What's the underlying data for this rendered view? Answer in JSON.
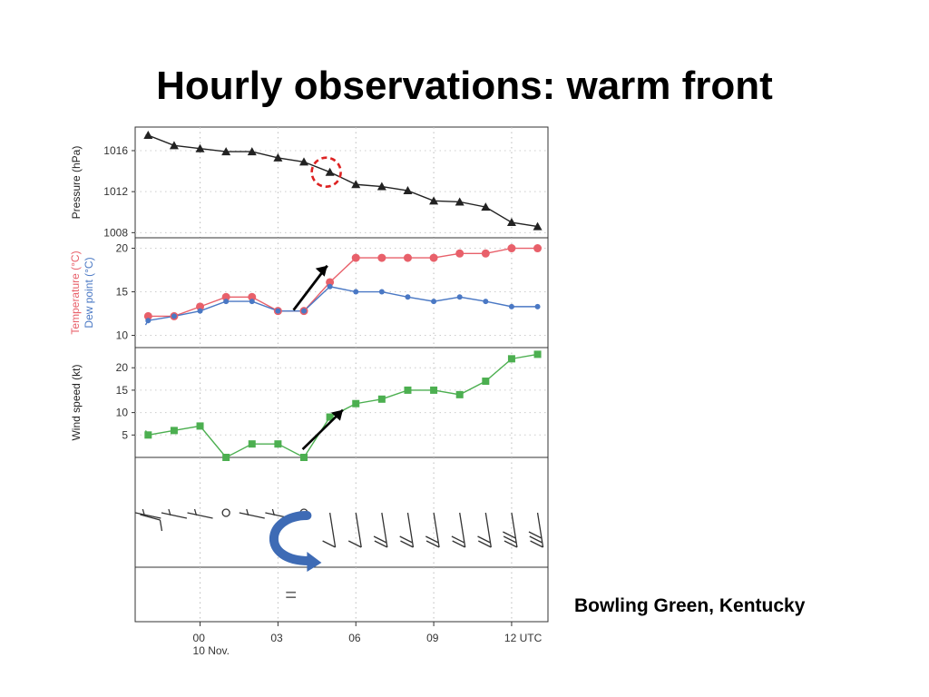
{
  "slide": {
    "title": "Hourly observations: warm front",
    "location": "Bowling Green, Kentucky"
  },
  "colors": {
    "pressure": "#222222",
    "temperature": "#e8606a",
    "dewpoint": "#4a78c4",
    "wind_speed": "#4caf50",
    "highlight_circle": "#dd2222",
    "curved_arrow": "#3e6bb5"
  },
  "chart_data": [
    {
      "type": "line",
      "ylabel": "Pressure (hPa)",
      "ylim": [
        1007.5,
        1018.3
      ],
      "yticks": [
        "1008",
        "1012",
        "1016"
      ],
      "x": [
        -2.1,
        -2,
        -1,
        0,
        1,
        2,
        3,
        4,
        5,
        6,
        7,
        8,
        9,
        10,
        11,
        12,
        13
      ],
      "series": [
        {
          "values": [
            1017.5,
            1017.5,
            1016.5,
            1016.2,
            1015.9,
            1015.9,
            1015.3,
            1014.9,
            1013.9,
            1012.7,
            1012.5,
            1012.1,
            1011.1,
            1011.0,
            1010.5,
            1009.0,
            1008.6
          ]
        }
      ],
      "marker": "triangle",
      "annotation": "dashed circle around 05 UTC"
    },
    {
      "type": "line",
      "ylabel": "Temperature (°C)",
      "ylabel2": "Dew point (°C)",
      "ylim": [
        8.6,
        21.2
      ],
      "yticks": [
        "10",
        "15",
        "20"
      ],
      "x": [
        -2.1,
        -2,
        -1,
        0,
        1,
        2,
        3,
        4,
        5,
        6,
        7,
        8,
        9,
        10,
        11,
        12,
        13
      ],
      "series": [
        {
          "name": "Temperature",
          "x": [
            -2.1,
            -2,
            -1,
            0,
            1,
            2,
            3,
            4,
            5,
            6,
            7,
            8,
            9,
            10,
            11,
            12,
            13
          ],
          "values": [
            12.4,
            12.2,
            12.2,
            13.3,
            14.4,
            14.4,
            12.8,
            12.8,
            16.1,
            18.9,
            18.9,
            18.9,
            18.9,
            19.4,
            19.4,
            20.0,
            20.0
          ]
        },
        {
          "name": "Dew point",
          "x": [
            -2.1,
            -2,
            -1,
            0,
            1,
            2,
            3,
            4,
            5,
            6,
            7,
            8,
            9,
            10,
            11,
            12,
            13
          ],
          "values": [
            11.2,
            11.7,
            12.2,
            12.8,
            13.9,
            13.9,
            12.8,
            12.8,
            15.6,
            15.0,
            15.0,
            14.4,
            13.9,
            14.4,
            13.9,
            13.3,
            13.3
          ]
        }
      ],
      "annotation": "arrow pointing up between 03 and 05 UTC"
    },
    {
      "type": "line",
      "ylabel": "Wind speed (kt)",
      "ylim": [
        0,
        24.5
      ],
      "yticks": [
        "5",
        "10",
        "15",
        "20"
      ],
      "x": [
        -2.1,
        -2,
        -1,
        0,
        1,
        2,
        3,
        4,
        5,
        6,
        7,
        8,
        9,
        10,
        11,
        12,
        13
      ],
      "series": [
        {
          "values": [
            6,
            5,
            6,
            7,
            0,
            3,
            3,
            0,
            9,
            12,
            13,
            15,
            15,
            14,
            17,
            22,
            23
          ]
        }
      ],
      "marker": "square",
      "annotation": "arrow pointing up between 04 and 05.5 UTC"
    },
    {
      "type": "wind_barbs",
      "x": [
        -2.1,
        -2,
        -1,
        0,
        1,
        2,
        3,
        4,
        5,
        6,
        7,
        8,
        9,
        10,
        11,
        12,
        13
      ],
      "speed_kt": [
        6,
        5,
        6,
        7,
        0,
        3,
        3,
        0,
        9,
        12,
        13,
        15,
        15,
        14,
        17,
        22,
        23
      ],
      "annotation": "curved blue arrow showing wind shift near 04 UTC"
    },
    {
      "type": "weather_symbols",
      "symbols": [
        {
          "x": 3.5,
          "symbol": "="
        }
      ]
    }
  ],
  "x_axis": {
    "xlim": [
      -2.5,
      13.4
    ],
    "ticks": [
      {
        "x": 0,
        "label": "00"
      },
      {
        "x": 3,
        "label": "03"
      },
      {
        "x": 6,
        "label": "06"
      },
      {
        "x": 9,
        "label": "09"
      },
      {
        "x": 12,
        "label": "12 UTC"
      }
    ],
    "date_label": "10 Nov."
  }
}
